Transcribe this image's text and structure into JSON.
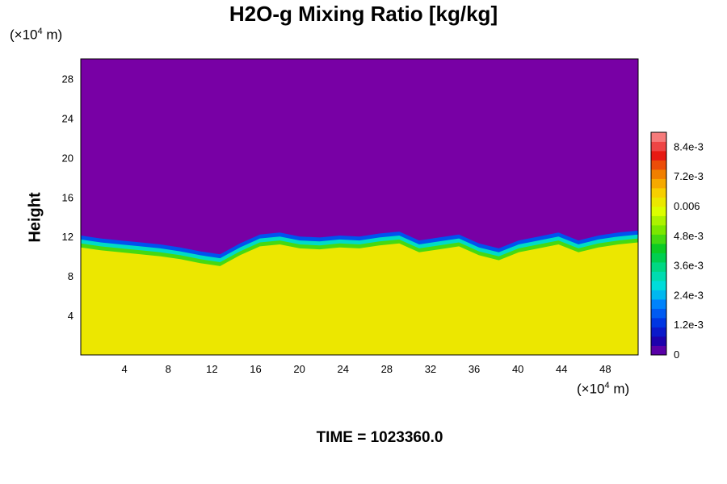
{
  "title": "H2O-g Mixing Ratio [kg/kg]",
  "y_unit_prefix": "(×10",
  "y_unit_exp": "4",
  "y_unit_suffix": " m)",
  "x_unit_prefix": "(×10",
  "x_unit_exp": "4",
  "x_unit_suffix": " m)",
  "ylabel": "Height",
  "time_label": "TIME = 1023360.0",
  "chart_data": {
    "type": "heatmap",
    "title": "H2O-g Mixing Ratio [kg/kg]",
    "xlabel": "",
    "ylabel": "Height",
    "x_unit": "×10^4 m",
    "y_unit": "×10^4 m",
    "xlim": [
      0,
      51
    ],
    "ylim": [
      0,
      30
    ],
    "x_ticks": [
      "4",
      "8",
      "12",
      "16",
      "20",
      "24",
      "28",
      "32",
      "36",
      "40",
      "44",
      "48"
    ],
    "y_ticks": [
      "4",
      "8",
      "12",
      "16",
      "20",
      "24",
      "28"
    ],
    "colorbar": {
      "min": 0,
      "max": 0.009,
      "labels": [
        "0",
        "1.2e-3",
        "2.4e-3",
        "3.6e-3",
        "4.8e-3",
        "0.006",
        "7.2e-3",
        "8.4e-3"
      ],
      "label_values": [
        0,
        0.0012,
        0.0024,
        0.0036,
        0.0048,
        0.006,
        0.0072,
        0.0084
      ]
    },
    "boundary_height": [
      12.1,
      11.8,
      11.6,
      11.4,
      11.2,
      10.9,
      10.5,
      10.2,
      11.3,
      12.2,
      12.4,
      12.0,
      11.9,
      12.1,
      12.0,
      12.3,
      12.5,
      11.6,
      11.9,
      12.2,
      11.3,
      10.8,
      11.6,
      12.0,
      12.4,
      11.6,
      12.1,
      12.4,
      12.6
    ],
    "upper_value": 0.0,
    "lower_value": 0.0062,
    "time": "1023360.0"
  }
}
